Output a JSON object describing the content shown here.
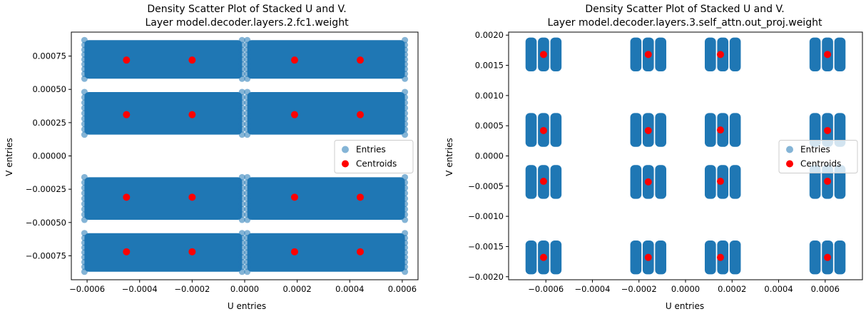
{
  "chart_data": [
    {
      "type": "scatter",
      "title": "Density Scatter Plot of Stacked U and V.",
      "subtitle": "Layer model.decoder.layers.2.fc1.weight",
      "xlabel": "U entries",
      "ylabel": "V entries",
      "xlim": [
        -0.00066,
        0.00066
      ],
      "ylim": [
        -0.00093,
        0.00093
      ],
      "xticks": [
        -0.0006,
        -0.0004,
        -0.0002,
        0.0,
        0.0002,
        0.0004,
        0.0006
      ],
      "xtick_labels": [
        "−0.0006",
        "−0.0004",
        "−0.0002",
        "0.0000",
        "0.0002",
        "0.0004",
        "0.0006"
      ],
      "yticks": [
        -0.00075,
        -0.0005,
        -0.00025,
        0.0,
        0.00025,
        0.0005,
        0.00075
      ],
      "ytick_labels": [
        "−0.00075",
        "−0.00050",
        "−0.00025",
        "0.00000",
        "0.00025",
        "0.00050",
        "0.00075"
      ],
      "grid": false,
      "legend_position": "center-right",
      "legend": [
        {
          "label": "Entries",
          "color": "#1f77b4"
        },
        {
          "label": "Centroids",
          "color": "#ff0000"
        }
      ],
      "series": [
        {
          "name": "Entries",
          "color": "#1f77b4",
          "x_bands": [
            [
              -0.00061,
              -1e-05
            ],
            [
              1e-05,
              0.00061
            ]
          ],
          "y_bands": [
            [
              -0.00087,
              -0.00058
            ],
            [
              -0.00048,
              -0.00016
            ],
            [
              0.00016,
              0.00048
            ],
            [
              0.00058,
              0.00087
            ]
          ]
        },
        {
          "name": "Centroids",
          "color": "#ff0000",
          "points": [
            [
              -0.00045,
              0.00072
            ],
            [
              -0.0002,
              0.00072
            ],
            [
              0.00019,
              0.00072
            ],
            [
              0.00044,
              0.00072
            ],
            [
              -0.00045,
              0.00031
            ],
            [
              -0.0002,
              0.00031
            ],
            [
              0.00019,
              0.00031
            ],
            [
              0.00044,
              0.00031
            ],
            [
              -0.00045,
              -0.00031
            ],
            [
              -0.0002,
              -0.00031
            ],
            [
              0.00019,
              -0.00031
            ],
            [
              0.00044,
              -0.00031
            ],
            [
              -0.00045,
              -0.00072
            ],
            [
              -0.0002,
              -0.00072
            ],
            [
              0.00019,
              -0.00072
            ],
            [
              0.00044,
              -0.00072
            ]
          ]
        }
      ]
    },
    {
      "type": "scatter",
      "title": "Density Scatter Plot of Stacked U and V.",
      "subtitle": "Layer model.decoder.layers.3.self_attn.out_proj.weight",
      "xlabel": "U entries",
      "ylabel": "V entries",
      "xlim": [
        -0.00076,
        0.00076
      ],
      "ylim": [
        -0.00205,
        0.00205
      ],
      "xticks": [
        -0.0006,
        -0.0004,
        -0.0002,
        0.0,
        0.0002,
        0.0004,
        0.0006
      ],
      "xtick_labels": [
        "−0.0006",
        "−0.0004",
        "−0.0002",
        "0.0000",
        "0.0002",
        "0.0004",
        "0.0006"
      ],
      "yticks": [
        -0.002,
        -0.0015,
        -0.001,
        -0.0005,
        0.0,
        0.0005,
        0.001,
        0.0015,
        0.002
      ],
      "ytick_labels": [
        "−0.0020",
        "−0.0015",
        "−0.0010",
        "−0.0005",
        "0.0000",
        "0.0005",
        "0.0010",
        "0.0015",
        "0.0020"
      ],
      "grid": false,
      "legend_position": "center-right",
      "legend": [
        {
          "label": "Entries",
          "color": "#1f77b4"
        },
        {
          "label": "Centroids",
          "color": "#ff0000"
        }
      ],
      "series": [
        {
          "name": "Entries",
          "color": "#1f77b4",
          "cluster_x": [
            -0.00061,
            -0.00016,
            0.00016,
            0.00061
          ],
          "cluster_y": [
            0.00168,
            0.00043,
            -0.00043,
            -0.00168
          ],
          "cluster_half_width": 8e-05,
          "cluster_half_height": 0.00028
        },
        {
          "name": "Centroids",
          "color": "#ff0000",
          "points": [
            [
              -0.00061,
              0.00168
            ],
            [
              -0.00016,
              0.00168
            ],
            [
              0.00015,
              0.00168
            ],
            [
              0.00061,
              0.00168
            ],
            [
              -0.00061,
              0.00042
            ],
            [
              -0.00016,
              0.00042
            ],
            [
              0.00015,
              0.00043
            ],
            [
              0.00061,
              0.00042
            ],
            [
              -0.00061,
              -0.00042
            ],
            [
              -0.00016,
              -0.00043
            ],
            [
              0.00015,
              -0.00042
            ],
            [
              0.00061,
              -0.00042
            ],
            [
              -0.00061,
              -0.00168
            ],
            [
              -0.00016,
              -0.00168
            ],
            [
              0.00015,
              -0.00168
            ],
            [
              0.00061,
              -0.00168
            ]
          ]
        }
      ]
    }
  ]
}
